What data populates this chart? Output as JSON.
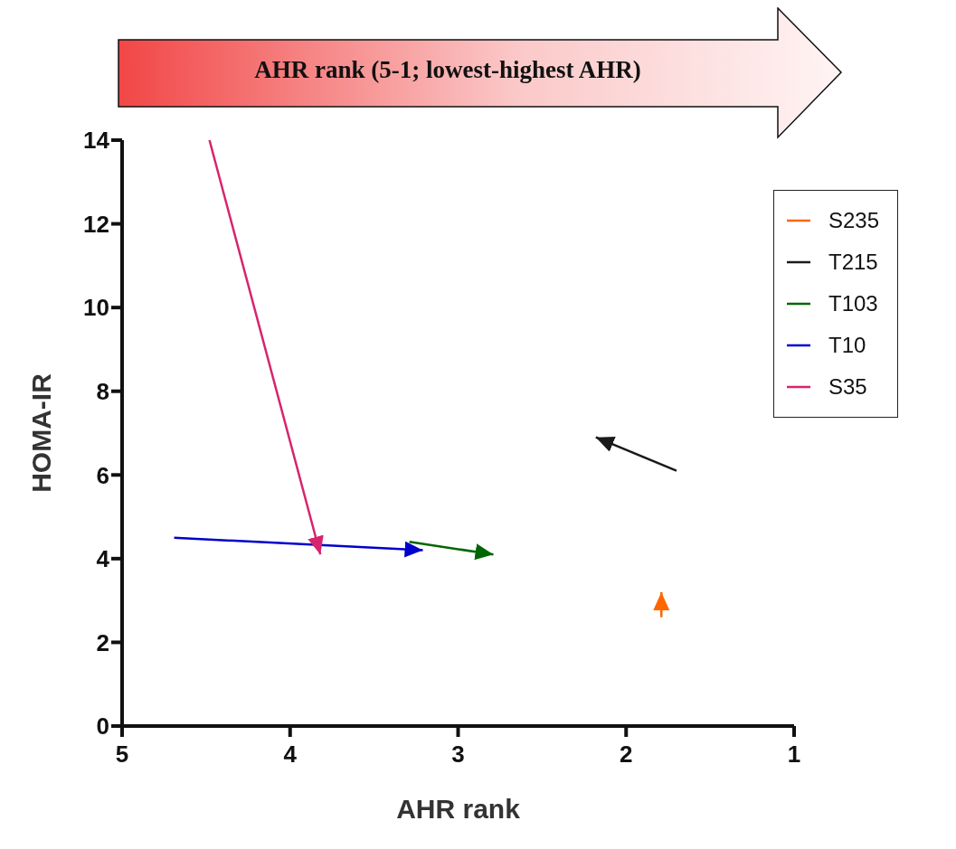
{
  "chart_data": {
    "type": "line",
    "xlabel": "AHR rank",
    "ylabel": "HOMA-IR",
    "annotations": [
      "AHR rank (5-1; lowest-highest AHR)"
    ],
    "xlim": [
      5,
      1
    ],
    "xticks": [
      5,
      4,
      3,
      2,
      1
    ],
    "ylim": [
      0,
      14
    ],
    "yticks": [
      0,
      2,
      4,
      6,
      8,
      10,
      12,
      14
    ],
    "legend": "right",
    "grid": false,
    "series": [
      {
        "name": "S235",
        "color": "#ff6600",
        "x": [
          1.79,
          1.79
        ],
        "values": [
          2.6,
          3.2
        ]
      },
      {
        "name": "T215",
        "color": "#1a1a1a",
        "x": [
          1.7,
          2.18
        ],
        "values": [
          6.1,
          6.9
        ]
      },
      {
        "name": "T103",
        "color": "#006600",
        "x": [
          3.29,
          2.79
        ],
        "values": [
          4.4,
          4.1
        ]
      },
      {
        "name": "T10",
        "color": "#0000cc",
        "x": [
          4.69,
          3.21
        ],
        "values": [
          4.5,
          4.2
        ]
      },
      {
        "name": "S35",
        "color": "#d6246e",
        "x": [
          4.48,
          3.82
        ],
        "values": [
          14,
          4.1
        ]
      }
    ]
  }
}
